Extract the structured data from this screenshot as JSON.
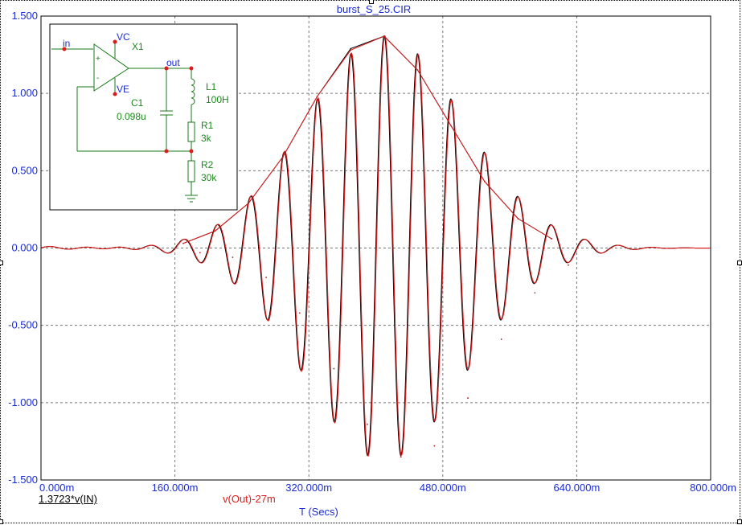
{
  "window": {
    "title": "burst_S_25.CIR"
  },
  "colors": {
    "axis_text": "#1a2bd6",
    "series_in": "#000000",
    "series_out": "#e01a1a",
    "schematic_wire": "#1a7a1a",
    "schematic_text": "#1a8a1a",
    "node": "#e01a1a",
    "grid": "#777777"
  },
  "chart_data": {
    "type": "line",
    "xlabel": "T (Secs)",
    "ylabel": "",
    "xlim": [
      0,
      800
    ],
    "ylim": [
      -1.5,
      1.5
    ],
    "x_ticks": [
      0,
      160,
      320,
      480,
      640,
      800
    ],
    "x_tick_labels": [
      "0.000m",
      "160.000m",
      "320.000m",
      "480.000m",
      "640.000m",
      "800.000m"
    ],
    "y_ticks": [
      1.5,
      1.0,
      0.5,
      0.0,
      -0.5,
      -1.0,
      -1.5
    ],
    "y_tick_labels": [
      "1.500",
      "1.000",
      "0.500",
      "0.000",
      "-0.500",
      "-1.000",
      "-1.500"
    ],
    "grid": true,
    "burst": {
      "center_ms": 410,
      "peak": 1.3723,
      "period_ms": 40
    },
    "series": [
      {
        "name": "1.3723*v(IN)",
        "color": "#000000",
        "peaks": [
          {
            "x": 170,
            "y": 0.03
          },
          {
            "x": 208,
            "y": 0.11
          },
          {
            "x": 248,
            "y": 0.29
          },
          {
            "x": 289,
            "y": 0.59
          },
          {
            "x": 330,
            "y": 0.98
          },
          {
            "x": 370,
            "y": 1.29
          },
          {
            "x": 410,
            "y": 1.37
          },
          {
            "x": 450,
            "y": 1.15
          },
          {
            "x": 490,
            "y": 0.79
          },
          {
            "x": 530,
            "y": 0.43
          },
          {
            "x": 570,
            "y": 0.19
          },
          {
            "x": 610,
            "y": 0.06
          }
        ],
        "troughs": [
          {
            "x": 190,
            "y": -0.03
          },
          {
            "x": 229,
            "y": -0.06
          },
          {
            "x": 269,
            "y": -0.19
          },
          {
            "x": 309,
            "y": -0.42
          },
          {
            "x": 350,
            "y": -0.78
          },
          {
            "x": 390,
            "y": -1.14
          },
          {
            "x": 430,
            "y": -1.35
          },
          {
            "x": 470,
            "y": -1.28
          },
          {
            "x": 510,
            "y": -0.97
          },
          {
            "x": 550,
            "y": -0.59
          },
          {
            "x": 590,
            "y": -0.29
          },
          {
            "x": 630,
            "y": -0.11
          }
        ]
      },
      {
        "name": "v(Out)-27m",
        "color": "#e01a1a",
        "peaks": [
          {
            "x": 170,
            "y": 0.03
          },
          {
            "x": 208,
            "y": 0.11
          },
          {
            "x": 248,
            "y": 0.29
          },
          {
            "x": 289,
            "y": 0.59
          },
          {
            "x": 330,
            "y": 0.98
          },
          {
            "x": 370,
            "y": 1.28
          },
          {
            "x": 410,
            "y": 1.37
          },
          {
            "x": 450,
            "y": 1.15
          },
          {
            "x": 490,
            "y": 0.79
          },
          {
            "x": 530,
            "y": 0.43
          },
          {
            "x": 570,
            "y": 0.19
          },
          {
            "x": 610,
            "y": 0.06
          }
        ],
        "troughs": [
          {
            "x": 190,
            "y": -0.03
          },
          {
            "x": 229,
            "y": -0.06
          },
          {
            "x": 269,
            "y": -0.19
          },
          {
            "x": 309,
            "y": -0.42
          },
          {
            "x": 350,
            "y": -0.78
          },
          {
            "x": 390,
            "y": -1.14
          },
          {
            "x": 430,
            "y": -1.35
          },
          {
            "x": 470,
            "y": -1.28
          },
          {
            "x": 510,
            "y": -0.97
          },
          {
            "x": 550,
            "y": -0.59
          },
          {
            "x": 590,
            "y": -0.29
          },
          {
            "x": 630,
            "y": -0.11
          }
        ]
      }
    ]
  },
  "schematic": {
    "in_label": "in",
    "vc_label": "VC",
    "ve_label": "VE",
    "opamp_label": "X1",
    "plus_sign": "+",
    "minus_sign": "-",
    "out_label": "out",
    "l1_name": "L1",
    "l1_value": "100H",
    "c1_name": "C1",
    "c1_value": "0.098u",
    "r1_name": "R1",
    "r1_value": "3k",
    "r2_name": "R2",
    "r2_value": "30k"
  }
}
